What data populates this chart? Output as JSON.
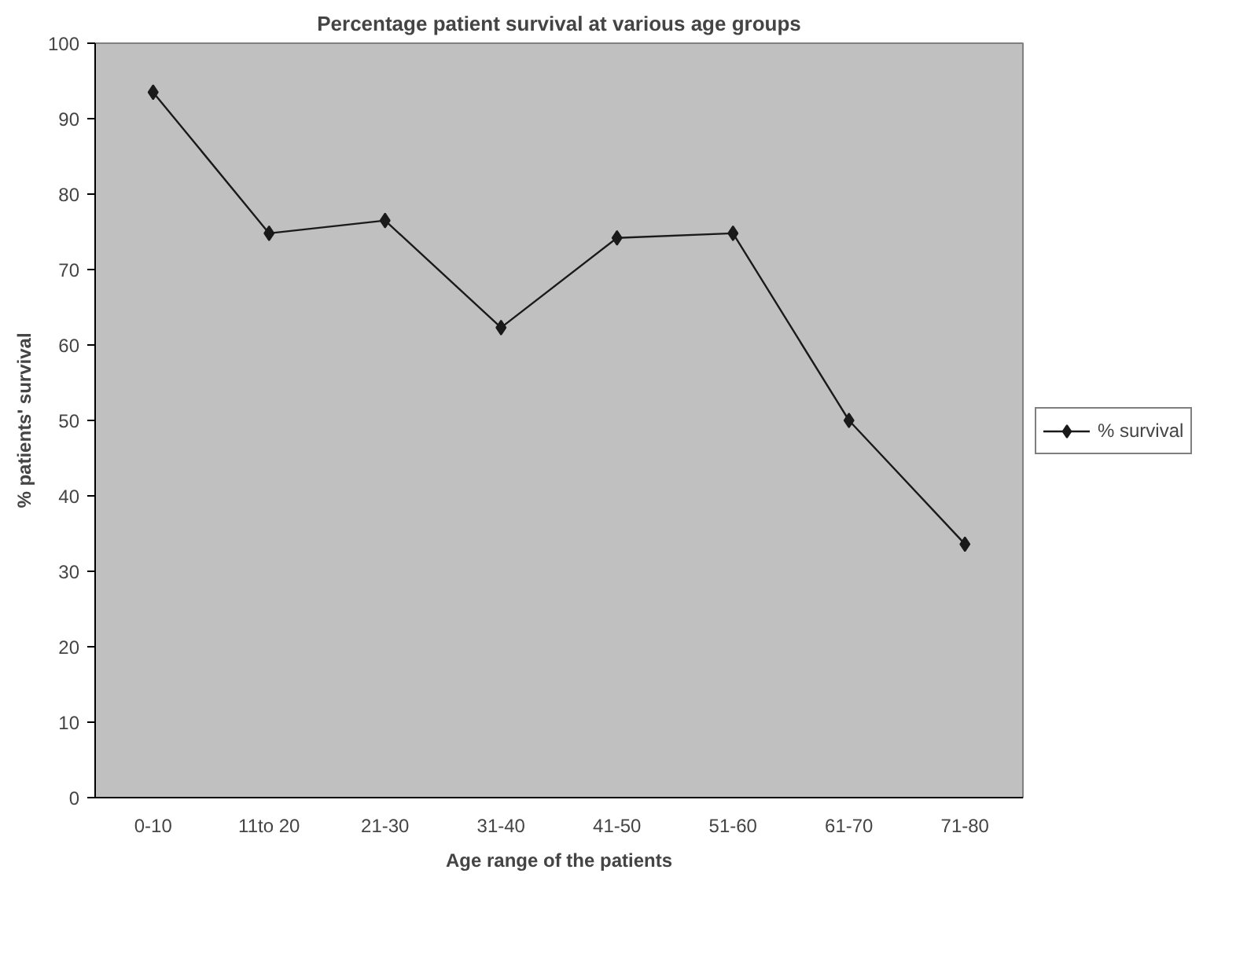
{
  "chart_data": {
    "type": "line",
    "title": "Percentage patient survival at various age groups",
    "xlabel": "Age range of the patients",
    "ylabel": "% patients' survival",
    "categories": [
      "0-10",
      "11to 20",
      "21-30",
      "31-40",
      "41-50",
      "51-60",
      "61-70",
      "71-80"
    ],
    "series": [
      {
        "name": "% survival",
        "color": "#1a1a1a",
        "values": [
          93.5,
          74.8,
          76.5,
          62.3,
          74.2,
          74.8,
          50,
          33.6
        ]
      }
    ],
    "ylim": [
      0,
      100
    ],
    "yticks": [
      0,
      10,
      20,
      30,
      40,
      50,
      60,
      70,
      80,
      90,
      100
    ],
    "grid": false,
    "legend": "right",
    "marker": "diamond",
    "line_style": "solid"
  }
}
